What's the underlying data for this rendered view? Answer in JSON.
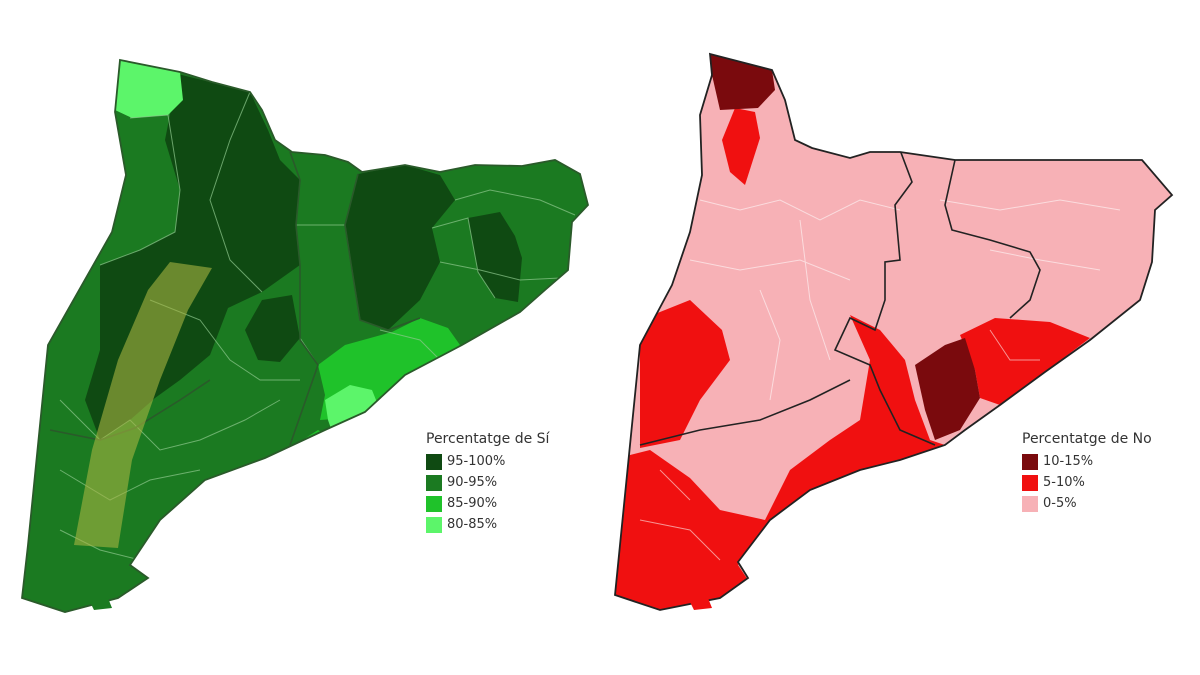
{
  "maps": [
    {
      "id": "si",
      "legend_title": "Percentatge de Sí",
      "outline_color": "#2a5a2a",
      "classes": [
        {
          "label": "95-100%",
          "color": "#0f4a12"
        },
        {
          "label": "90-95%",
          "color": "#1b7a21"
        },
        {
          "label": "85-90%",
          "color": "#1fc22a"
        },
        {
          "label": "80-85%",
          "color": "#5cf56a"
        }
      ],
      "overlay": {
        "shape": "band",
        "color": "#a7b441",
        "note_visible": false
      }
    },
    {
      "id": "no",
      "legend_title": "Percentatge de No",
      "outline_color": "#222222",
      "classes": [
        {
          "label": "10-15%",
          "color": "#7a0a0d"
        },
        {
          "label": "5-10%",
          "color": "#f01010"
        },
        {
          "label": "0-5%",
          "color": "#f7b1b6"
        }
      ]
    }
  ]
}
